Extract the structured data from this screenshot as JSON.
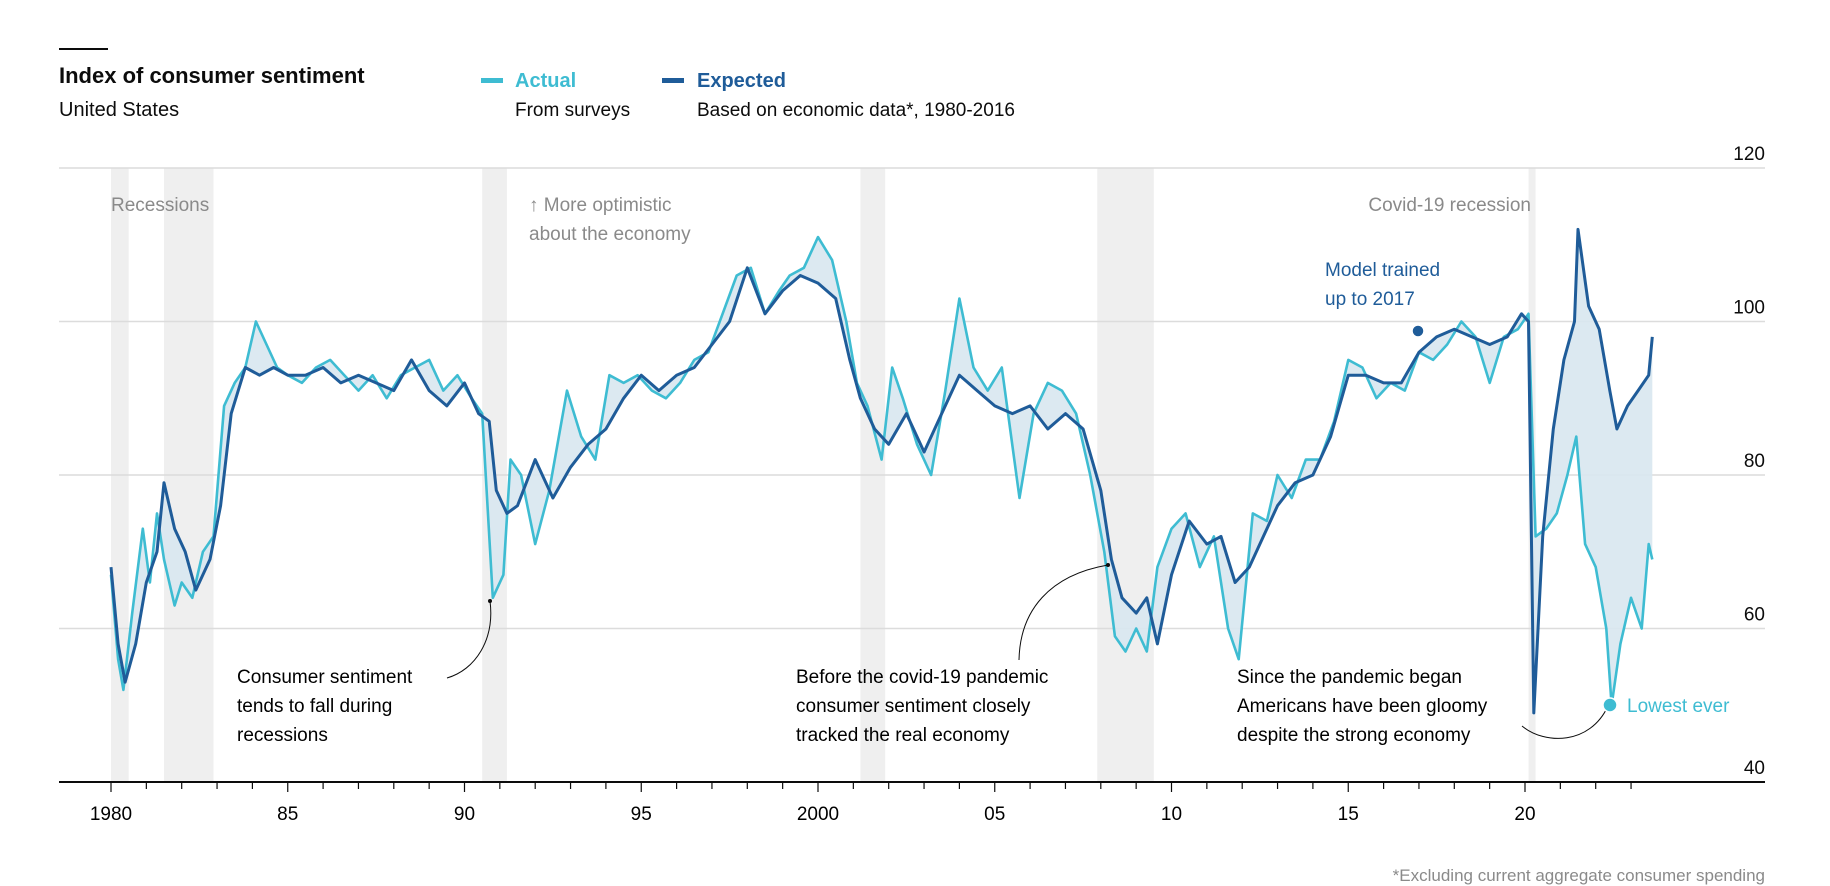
{
  "header": {
    "title": "Index of consumer sentiment",
    "subtitle": "United States"
  },
  "legend": [
    {
      "label": "Actual",
      "sub": "From surveys",
      "color": "#3ebcd2"
    },
    {
      "label": "Expected",
      "sub": "Based on economic data*, 1980-2016",
      "color": "#1f5c99"
    }
  ],
  "annotations": {
    "recessions": "Recessions",
    "optimistic_1": "↑ More optimistic",
    "optimistic_2": "about the economy",
    "covid": "Covid-19 recession",
    "model_1": "Model trained",
    "model_2": "up to 2017",
    "fall_1": "Consumer sentiment",
    "fall_2": "tends to fall during",
    "fall_3": "recessions",
    "before_1": "Before the covid-19 pandemic",
    "before_2": "consumer sentiment closely",
    "before_3": "tracked the real economy",
    "since_1": "Since the pandemic began",
    "since_2": "Americans have been gloomy",
    "since_3": "despite the strong economy",
    "lowest": "Lowest ever"
  },
  "footnote": "*Excluding current aggregate consumer spending",
  "chart_data": {
    "type": "line",
    "title": "Index of consumer sentiment",
    "subtitle": "United States",
    "ylim": [
      40,
      120
    ],
    "xlim": [
      1980,
      2024
    ],
    "y_ticks": [
      "40",
      "60",
      "80",
      "100",
      "120"
    ],
    "y_tick_values": [
      40,
      60,
      80,
      100,
      120
    ],
    "x_ticks": [
      "1980",
      "85",
      "90",
      "95",
      "2000",
      "05",
      "10",
      "15",
      "20"
    ],
    "x_tick_values": [
      1980,
      1985,
      1990,
      1995,
      2000,
      2005,
      2010,
      2015,
      2020
    ],
    "recessions": [
      [
        1980.0,
        1980.5
      ],
      [
        1981.5,
        1982.9
      ],
      [
        1990.5,
        1991.2
      ],
      [
        2001.2,
        2001.9
      ],
      [
        2007.9,
        2009.5
      ],
      [
        2020.1,
        2020.3
      ]
    ],
    "series": [
      {
        "name": "Actual",
        "x": [
          1980,
          1980.2,
          1980.35,
          1980.6,
          1980.9,
          1981.1,
          1981.3,
          1981.5,
          1981.8,
          1982.0,
          1982.3,
          1982.6,
          1982.9,
          1983.2,
          1983.5,
          1983.8,
          1984.1,
          1984.4,
          1984.7,
          1985.0,
          1985.4,
          1985.8,
          1986.2,
          1986.6,
          1987.0,
          1987.4,
          1987.8,
          1988.2,
          1988.6,
          1989.0,
          1989.4,
          1989.8,
          1990.2,
          1990.5,
          1990.8,
          1991.1,
          1991.3,
          1991.6,
          1992.0,
          1992.4,
          1992.9,
          1993.3,
          1993.7,
          1994.1,
          1994.5,
          1994.9,
          1995.3,
          1995.7,
          1996.1,
          1996.5,
          1996.9,
          1997.3,
          1997.7,
          1998.1,
          1998.5,
          1998.9,
          1999.2,
          1999.6,
          2000.0,
          2000.4,
          2000.8,
          2001.1,
          2001.4,
          2001.8,
          2002.1,
          2002.4,
          2002.8,
          2003.2,
          2003.6,
          2004.0,
          2004.4,
          2004.8,
          2005.2,
          2005.7,
          2006.1,
          2006.5,
          2006.9,
          2007.3,
          2007.7,
          2008.1,
          2008.4,
          2008.7,
          2009.0,
          2009.3,
          2009.6,
          2010.0,
          2010.4,
          2010.8,
          2011.2,
          2011.6,
          2011.9,
          2012.3,
          2012.7,
          2013.0,
          2013.4,
          2013.8,
          2014.2,
          2014.6,
          2015.0,
          2015.4,
          2015.8,
          2016.2,
          2016.6,
          2017.0,
          2017.4,
          2017.8,
          2018.2,
          2018.6,
          2019.0,
          2019.4,
          2019.8,
          2020.1,
          2020.3,
          2020.6,
          2020.9,
          2021.2,
          2021.45,
          2021.7,
          2022.0,
          2022.3,
          2022.45,
          2022.7,
          2023.0,
          2023.3,
          2023.5,
          2023.6
        ],
        "values": [
          67,
          56,
          52,
          62,
          73,
          66,
          75,
          69,
          63,
          66,
          64,
          70,
          72,
          89,
          92,
          94,
          100,
          97,
          94,
          93,
          92,
          94,
          95,
          93,
          91,
          93,
          90,
          93,
          94,
          95,
          91,
          93,
          90,
          88,
          64,
          67,
          82,
          80,
          71,
          78,
          91,
          85,
          82,
          93,
          92,
          93,
          91,
          90,
          92,
          95,
          96,
          101,
          106,
          107,
          101,
          104,
          106,
          107,
          111,
          108,
          100,
          92,
          89,
          82,
          94,
          90,
          84,
          80,
          91,
          103,
          94,
          91,
          94,
          77,
          88,
          92,
          91,
          88,
          80,
          70,
          59,
          57,
          60,
          57,
          68,
          73,
          75,
          68,
          72,
          60,
          56,
          75,
          74,
          80,
          77,
          82,
          82,
          87,
          95,
          94,
          90,
          92,
          91,
          96,
          95,
          97,
          100,
          98,
          92,
          98,
          99,
          101,
          72,
          73,
          75,
          80,
          85,
          71,
          68,
          60,
          50,
          58,
          64,
          60,
          71,
          69
        ]
      },
      {
        "name": "Expected",
        "x": [
          1980,
          1980.2,
          1980.4,
          1980.7,
          1981.0,
          1981.3,
          1981.5,
          1981.8,
          1982.1,
          1982.4,
          1982.8,
          1983.1,
          1983.4,
          1983.8,
          1984.2,
          1984.6,
          1985.0,
          1985.5,
          1986.0,
          1986.5,
          1987.0,
          1987.5,
          1988.0,
          1988.5,
          1989.0,
          1989.5,
          1990.0,
          1990.4,
          1990.7,
          1990.9,
          1991.2,
          1991.5,
          1992.0,
          1992.5,
          1993.0,
          1993.5,
          1994.0,
          1994.5,
          1995.0,
          1995.5,
          1996.0,
          1996.5,
          1997.0,
          1997.5,
          1998.0,
          1998.5,
          1999.0,
          1999.5,
          2000.0,
          2000.5,
          2000.9,
          2001.2,
          2001.6,
          2002.0,
          2002.5,
          2003.0,
          2003.5,
          2004.0,
          2004.5,
          2005.0,
          2005.5,
          2006.0,
          2006.5,
          2007.0,
          2007.5,
          2008.0,
          2008.3,
          2008.6,
          2009.0,
          2009.3,
          2009.6,
          2010.0,
          2010.5,
          2011.0,
          2011.4,
          2011.8,
          2012.2,
          2012.6,
          2013.0,
          2013.5,
          2014.0,
          2014.5,
          2015.0,
          2015.5,
          2016.0,
          2016.5,
          2017.0,
          2017.5,
          2018.0,
          2018.5,
          2019.0,
          2019.5,
          2019.9,
          2020.1,
          2020.25,
          2020.5,
          2020.8,
          2021.1,
          2021.4,
          2021.5,
          2021.8,
          2022.1,
          2022.4,
          2022.6,
          2022.9,
          2023.2,
          2023.5,
          2023.6
        ],
        "values": [
          68,
          58,
          53,
          58,
          66,
          70,
          79,
          73,
          70,
          65,
          69,
          76,
          88,
          94,
          93,
          94,
          93,
          93,
          94,
          92,
          93,
          92,
          91,
          95,
          91,
          89,
          92,
          88,
          87,
          78,
          75,
          76,
          82,
          77,
          81,
          84,
          86,
          90,
          93,
          91,
          93,
          94,
          97,
          100,
          107,
          101,
          104,
          106,
          105,
          103,
          95,
          90,
          86,
          84,
          88,
          83,
          88,
          93,
          91,
          89,
          88,
          89,
          86,
          88,
          86,
          78,
          69,
          64,
          62,
          64,
          58,
          67,
          74,
          71,
          72,
          66,
          68,
          72,
          76,
          79,
          80,
          85,
          93,
          93,
          92,
          92,
          96,
          98,
          99,
          98,
          97,
          98,
          101,
          100,
          49,
          72,
          86,
          95,
          100,
          112,
          102,
          99,
          91,
          86,
          89,
          91,
          93,
          98
        ]
      }
    ]
  }
}
